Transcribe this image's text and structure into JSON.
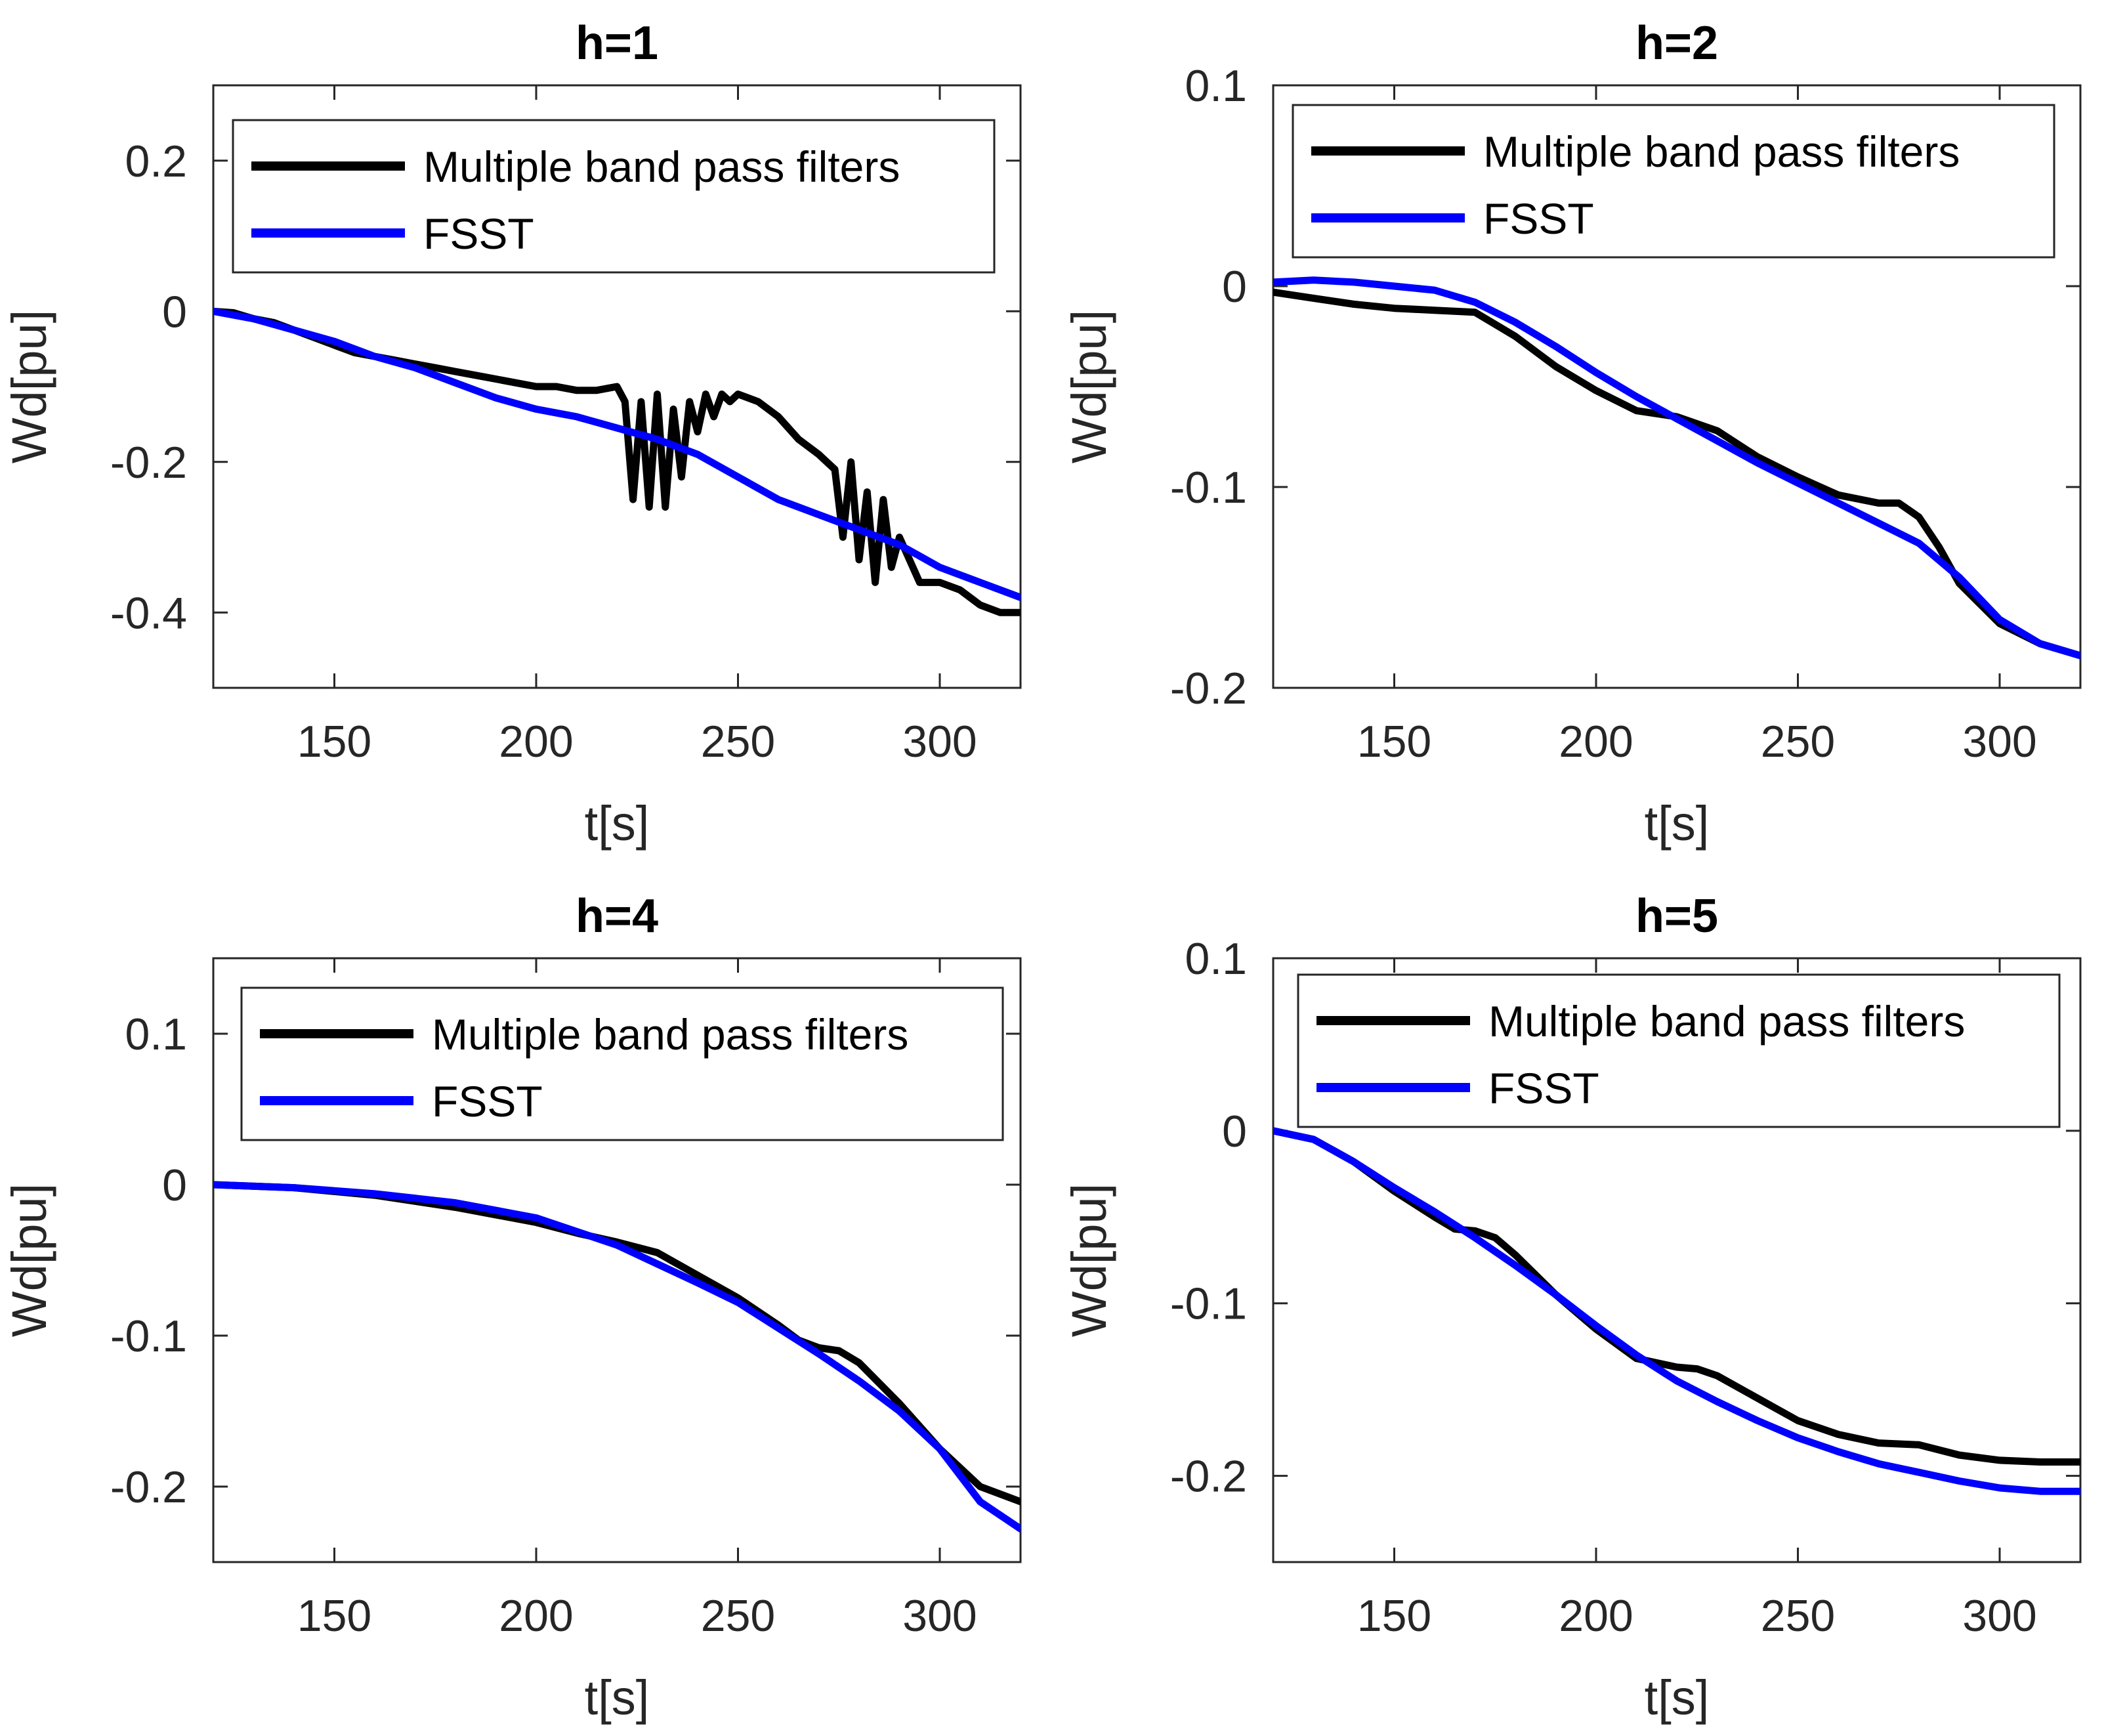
{
  "figure": {
    "series_colors": {
      "Multiple band pass filters": "#000000",
      "FSST": "#0000ff"
    }
  },
  "chart_data": [
    {
      "type": "line",
      "title": "h=1",
      "xlabel": "t[s]",
      "ylabel": "Wd[pu]",
      "xlim": [
        120,
        320
      ],
      "ylim": [
        -0.5,
        0.3
      ],
      "xticks": [
        150,
        200,
        250,
        300
      ],
      "xtick_labels": [
        "150",
        "200",
        "250",
        "300"
      ],
      "yticks": [
        -0.4,
        -0.2,
        0,
        0.2
      ],
      "ytick_labels": [
        "-0.4",
        "-0.2",
        "0",
        "0.2"
      ],
      "legend": {
        "position": "top-right",
        "entries": [
          "Multiple band pass filters",
          "FSST"
        ]
      },
      "series": [
        {
          "name": "Multiple band pass filters",
          "color": "#000000",
          "x": [
            120,
            125,
            130,
            135,
            140,
            145,
            150,
            155,
            160,
            165,
            170,
            175,
            180,
            185,
            190,
            195,
            200,
            205,
            210,
            215,
            220,
            222,
            224,
            226,
            228,
            230,
            232,
            234,
            236,
            238,
            240,
            242,
            244,
            246,
            248,
            250,
            255,
            260,
            265,
            270,
            272,
            274,
            276,
            278,
            280,
            282,
            284,
            286,
            288,
            290,
            295,
            300,
            305,
            310,
            315,
            320
          ],
          "y": [
            0,
            -0.002,
            -0.01,
            -0.015,
            -0.025,
            -0.035,
            -0.045,
            -0.055,
            -0.06,
            -0.065,
            -0.07,
            -0.075,
            -0.08,
            -0.085,
            -0.09,
            -0.095,
            -0.1,
            -0.1,
            -0.105,
            -0.105,
            -0.1,
            -0.12,
            -0.25,
            -0.12,
            -0.26,
            -0.11,
            -0.26,
            -0.13,
            -0.22,
            -0.12,
            -0.16,
            -0.11,
            -0.14,
            -0.11,
            -0.12,
            -0.11,
            -0.12,
            -0.14,
            -0.17,
            -0.19,
            -0.2,
            -0.21,
            -0.3,
            -0.2,
            -0.33,
            -0.24,
            -0.36,
            -0.25,
            -0.34,
            -0.3,
            -0.36,
            -0.36,
            -0.37,
            -0.39,
            -0.4,
            -0.4
          ]
        },
        {
          "name": "FSST",
          "color": "#0000ff",
          "x": [
            120,
            130,
            140,
            150,
            160,
            170,
            180,
            190,
            200,
            210,
            220,
            230,
            240,
            250,
            260,
            270,
            280,
            290,
            300,
            310,
            320
          ],
          "y": [
            0,
            -0.01,
            -0.025,
            -0.04,
            -0.06,
            -0.075,
            -0.095,
            -0.115,
            -0.13,
            -0.14,
            -0.155,
            -0.17,
            -0.19,
            -0.22,
            -0.25,
            -0.27,
            -0.29,
            -0.31,
            -0.34,
            -0.36,
            -0.38
          ]
        }
      ]
    },
    {
      "type": "line",
      "title": "h=2",
      "xlabel": "t[s]",
      "ylabel": "Wd[pu]",
      "xlim": [
        120,
        320
      ],
      "ylim": [
        -0.2,
        0.1
      ],
      "xticks": [
        150,
        200,
        250,
        300
      ],
      "xtick_labels": [
        "150",
        "200",
        "250",
        "300"
      ],
      "yticks": [
        -0.2,
        -0.1,
        0,
        0.1
      ],
      "ytick_labels": [
        "-0.2",
        "-0.1",
        "0",
        "0.1"
      ],
      "legend": {
        "position": "top-right",
        "entries": [
          "Multiple band pass filters",
          "FSST"
        ]
      },
      "series": [
        {
          "name": "Multiple band pass filters",
          "color": "#000000",
          "x": [
            120,
            130,
            140,
            150,
            160,
            170,
            180,
            190,
            200,
            210,
            220,
            230,
            240,
            250,
            260,
            270,
            275,
            280,
            285,
            290,
            300,
            310,
            320
          ],
          "y": [
            -0.003,
            -0.006,
            -0.009,
            -0.011,
            -0.012,
            -0.013,
            -0.025,
            -0.04,
            -0.052,
            -0.062,
            -0.065,
            -0.072,
            -0.085,
            -0.095,
            -0.104,
            -0.108,
            -0.108,
            -0.115,
            -0.13,
            -0.148,
            -0.168,
            -0.178,
            -0.184
          ]
        },
        {
          "name": "FSST",
          "color": "#0000ff",
          "x": [
            120,
            130,
            140,
            150,
            160,
            170,
            180,
            190,
            200,
            210,
            220,
            230,
            240,
            250,
            260,
            270,
            280,
            290,
            300,
            310,
            320
          ],
          "y": [
            0.002,
            0.003,
            0.002,
            0.0,
            -0.002,
            -0.008,
            -0.018,
            -0.03,
            -0.043,
            -0.055,
            -0.066,
            -0.077,
            -0.088,
            -0.098,
            -0.108,
            -0.118,
            -0.128,
            -0.145,
            -0.166,
            -0.178,
            -0.184
          ]
        }
      ]
    },
    {
      "type": "line",
      "title": "h=4",
      "xlabel": "t[s]",
      "ylabel": "Wd[pu]",
      "xlim": [
        120,
        320
      ],
      "ylim": [
        -0.25,
        0.15
      ],
      "xticks": [
        150,
        200,
        250,
        300
      ],
      "xtick_labels": [
        "150",
        "200",
        "250",
        "300"
      ],
      "yticks": [
        -0.2,
        -0.1,
        0,
        0.1
      ],
      "ytick_labels": [
        "-0.2",
        "-0.1",
        "0",
        "0.1"
      ],
      "legend": {
        "position": "top-right",
        "entries": [
          "Multiple band pass filters",
          "FSST"
        ]
      },
      "series": [
        {
          "name": "Multiple band pass filters",
          "color": "#000000",
          "x": [
            120,
            140,
            160,
            180,
            200,
            210,
            220,
            230,
            240,
            250,
            260,
            265,
            270,
            275,
            280,
            290,
            300,
            310,
            320
          ],
          "y": [
            0,
            -0.002,
            -0.007,
            -0.015,
            -0.025,
            -0.032,
            -0.038,
            -0.045,
            -0.06,
            -0.075,
            -0.093,
            -0.103,
            -0.108,
            -0.11,
            -0.118,
            -0.145,
            -0.175,
            -0.2,
            -0.21
          ]
        },
        {
          "name": "FSST",
          "color": "#0000ff",
          "x": [
            120,
            140,
            160,
            180,
            200,
            220,
            240,
            250,
            260,
            270,
            280,
            290,
            300,
            310,
            320
          ],
          "y": [
            0,
            -0.002,
            -0.006,
            -0.012,
            -0.022,
            -0.04,
            -0.065,
            -0.078,
            -0.095,
            -0.112,
            -0.13,
            -0.15,
            -0.175,
            -0.21,
            -0.228
          ]
        }
      ]
    },
    {
      "type": "line",
      "title": "h=5",
      "xlabel": "t[s]",
      "ylabel": "Wd[pu]",
      "xlim": [
        120,
        320
      ],
      "ylim": [
        -0.25,
        0.1
      ],
      "xticks": [
        150,
        200,
        250,
        300
      ],
      "xtick_labels": [
        "150",
        "200",
        "250",
        "300"
      ],
      "yticks": [
        -0.2,
        -0.1,
        0,
        0.1
      ],
      "ytick_labels": [
        "-0.2",
        "-0.1",
        "0",
        "0.1"
      ],
      "legend": {
        "position": "top-right",
        "entries": [
          "Multiple band pass filters",
          "FSST"
        ]
      },
      "series": [
        {
          "name": "Multiple band pass filters",
          "color": "#000000",
          "x": [
            120,
            130,
            140,
            150,
            160,
            165,
            170,
            175,
            180,
            190,
            200,
            210,
            220,
            225,
            230,
            240,
            250,
            260,
            270,
            280,
            290,
            300,
            310,
            320
          ],
          "y": [
            0,
            -0.005,
            -0.018,
            -0.035,
            -0.05,
            -0.057,
            -0.058,
            -0.062,
            -0.072,
            -0.095,
            -0.115,
            -0.132,
            -0.137,
            -0.138,
            -0.142,
            -0.155,
            -0.168,
            -0.176,
            -0.181,
            -0.182,
            -0.188,
            -0.191,
            -0.192,
            -0.192
          ]
        },
        {
          "name": "FSST",
          "color": "#0000ff",
          "x": [
            120,
            130,
            140,
            150,
            160,
            170,
            180,
            190,
            200,
            210,
            220,
            230,
            240,
            250,
            260,
            270,
            280,
            290,
            300,
            310,
            320
          ],
          "y": [
            0,
            -0.005,
            -0.018,
            -0.033,
            -0.047,
            -0.062,
            -0.078,
            -0.095,
            -0.113,
            -0.13,
            -0.145,
            -0.157,
            -0.168,
            -0.178,
            -0.186,
            -0.193,
            -0.198,
            -0.203,
            -0.207,
            -0.209,
            -0.209
          ]
        }
      ]
    }
  ]
}
